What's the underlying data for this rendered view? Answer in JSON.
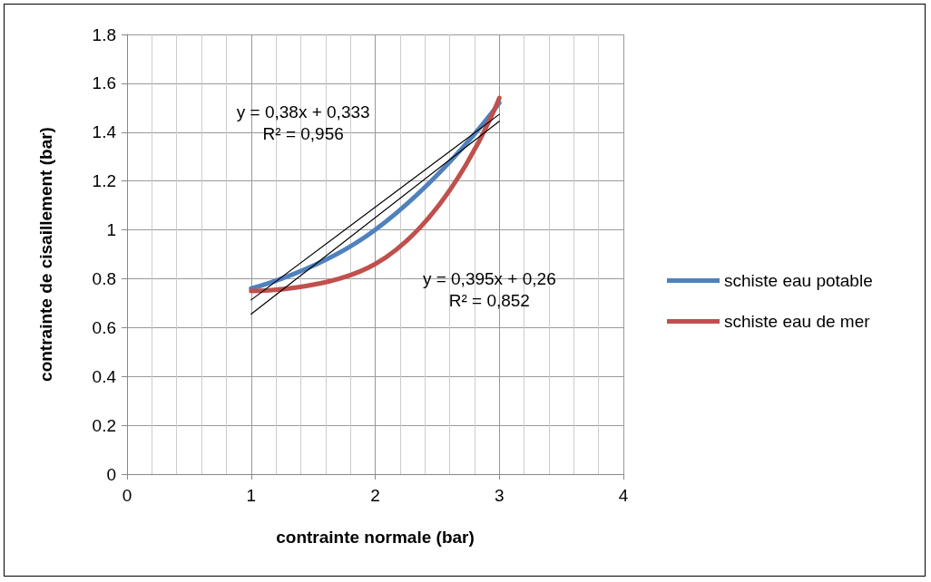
{
  "chart_data": {
    "type": "line",
    "xlabel": "contrainte normale (bar)",
    "ylabel": "contrainte de cisaillement (bar)",
    "xlim": [
      0,
      4
    ],
    "xticks": [
      0,
      1,
      2,
      3,
      4
    ],
    "ylim": [
      0,
      1.8
    ],
    "yticks": [
      0,
      0.2,
      0.4,
      0.6,
      0.8,
      1,
      1.2,
      1.4,
      1.6,
      1.8
    ],
    "grid": true,
    "legend": "right",
    "marker": "none",
    "line_style": "solid",
    "series": [
      {
        "name": "schiste eau potable",
        "color": "#4f81bd",
        "x": [
          1,
          2,
          3
        ],
        "values": [
          0.76,
          1.0,
          1.52
        ]
      },
      {
        "name": "schiste eau de mer",
        "color": "#c0504d",
        "x": [
          1,
          2,
          3
        ],
        "values": [
          0.75,
          0.86,
          1.54
        ]
      },
      {
        "color": "#000000",
        "x": [
          1,
          3
        ],
        "values": [
          0.713,
          1.473
        ]
      },
      {
        "color": "#000000",
        "x": [
          1,
          3
        ],
        "values": [
          0.655,
          1.445
        ]
      }
    ],
    "annotations": [
      "y = 0,38x + 0,333\nR² = 0,956",
      "y = 0,395x + 0,26\nR² = 0,852"
    ]
  }
}
